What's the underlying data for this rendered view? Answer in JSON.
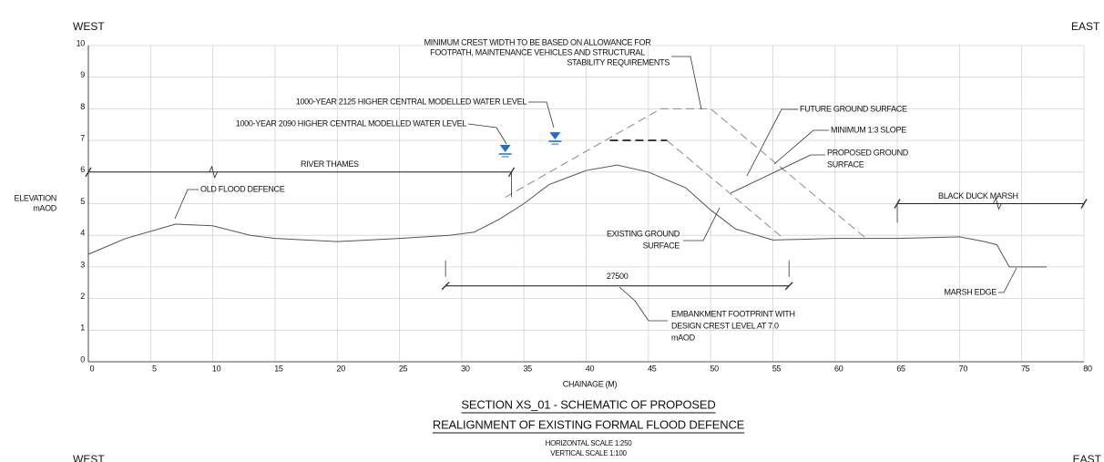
{
  "top_labels": {
    "west": "WEST",
    "east": "EAST"
  },
  "chart_data": {
    "type": "line",
    "x_label": "CHAINAGE (M)",
    "y_label": [
      "ELEVATION",
      "mAOD"
    ],
    "xlim": [
      0,
      80
    ],
    "ylim": [
      0,
      10
    ],
    "xticks": [
      0,
      5,
      10,
      15,
      20,
      25,
      30,
      35,
      40,
      45,
      50,
      55,
      60,
      65,
      70,
      75,
      80
    ],
    "yticks": [
      0,
      1,
      2,
      3,
      4,
      5,
      6,
      7,
      8,
      9,
      10
    ],
    "grid": true,
    "series": [
      {
        "style": "solid",
        "color": "#555555",
        "x": [
          0,
          3,
          7,
          10,
          13,
          15,
          20,
          25,
          29,
          31,
          33,
          35,
          37,
          40,
          42.5,
          45,
          48,
          50,
          52,
          55,
          60,
          65,
          70,
          72,
          73,
          74,
          77
        ],
        "values": [
          3.4,
          3.9,
          4.35,
          4.3,
          4.0,
          3.9,
          3.8,
          3.9,
          4.0,
          4.1,
          4.5,
          5.0,
          5.6,
          6.05,
          6.22,
          6.0,
          5.5,
          4.8,
          4.2,
          3.85,
          3.9,
          3.9,
          3.95,
          3.8,
          3.7,
          3.0,
          3.0
        ]
      },
      {
        "style": "dashed",
        "color": "#8a8a8a",
        "x": [
          33.5,
          46,
          50,
          62.5
        ],
        "values": [
          5.2,
          8.0,
          8.0,
          3.9
        ]
      },
      {
        "style": "dashed",
        "color": "#8a8a8a",
        "x": [
          46.5,
          56
        ],
        "values": [
          7.0,
          3.85
        ]
      },
      {
        "style": "dashed",
        "color": "#111111",
        "x": [
          41.9,
          46.5
        ],
        "values": [
          7.0,
          7.0
        ]
      }
    ],
    "water_levels": [
      {
        "label": "1000-YEAR 2090 HIGHER CENTRAL MODELLED WATER LEVEL",
        "x": 33.5,
        "y": 6.6,
        "color": "#1e6fd0"
      },
      {
        "label": "1000-YEAR 2125 HIGHER CENTRAL MODELLED WATER LEVEL",
        "x": 37.5,
        "y": 7.0,
        "color": "#1e6fd0"
      }
    ],
    "levels": [
      {
        "label": "RIVER THAMES",
        "x": [
          0,
          34
        ],
        "y": 6
      },
      {
        "label": "BLACK DUCK MARSH",
        "x": [
          65,
          80
        ],
        "y": 5
      }
    ],
    "dimension": {
      "label": "27500",
      "x": [
        28.7,
        56.3
      ],
      "y": 2.4
    },
    "annotations": [
      {
        "lines": [
          "MINIMUM CREST WIDTH TO BE BASED ON ALLOWANCE FOR",
          "FOOTPATH, MAINTENANCE VEHICLES AND STRUCTURAL",
          "STABILITY REQUIREMENTS"
        ]
      },
      {
        "lines": [
          "FUTURE GROUND SURFACE"
        ]
      },
      {
        "lines": [
          "MINIMUM 1:3 SLOPE"
        ]
      },
      {
        "lines": [
          "PROPOSED GROUND",
          "SURFACE"
        ]
      },
      {
        "lines": [
          "OLD FLOOD DEFENCE"
        ]
      },
      {
        "lines": [
          "EXISTING GROUND",
          "SURFACE"
        ]
      },
      {
        "lines": [
          "MARSH EDGE"
        ]
      },
      {
        "lines": [
          "EMBANKMENT FOOTPRINT WITH",
          "DESIGN CREST LEVEL AT 7.0",
          "mAOD"
        ]
      }
    ]
  },
  "title": {
    "lines": [
      "SECTION XS_01 - SCHEMATIC OF PROPOSED",
      "REALIGNMENT OF EXISTING FORMAL FLOOD DEFENCE"
    ],
    "scales": [
      "HORIZONTAL SCALE 1:250",
      "VERTICAL SCALE 1:100"
    ]
  },
  "next_section": {
    "west": "WEST",
    "east": "EAST"
  }
}
